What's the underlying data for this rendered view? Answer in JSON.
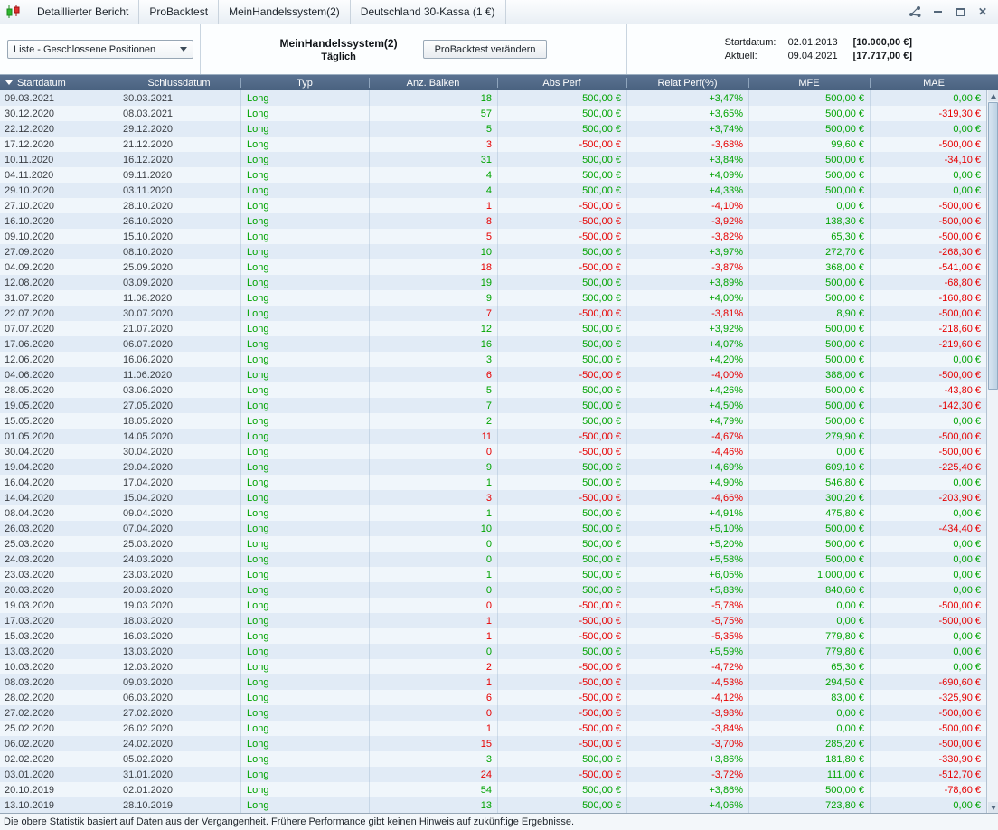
{
  "titlebar": {
    "tabs": [
      "Detaillierter Bericht",
      "ProBacktest",
      "MeinHandelssystem(2)",
      "Deutschland 30-Kassa (1 €)"
    ],
    "window_controls": {
      "minimize": "–",
      "maximize": "□",
      "close": "✕"
    }
  },
  "toolbar": {
    "list_dropdown_label": "Liste - Geschlossene Positionen",
    "system_name": "MeinHandelssystem(2)",
    "timeframe": "Täglich",
    "modify_button_label": "ProBacktest verändern",
    "start_label": "Startdatum:",
    "start_date": "02.01.2013",
    "start_value": "[10.000,00 €]",
    "current_label": "Aktuell:",
    "current_date": "09.04.2021",
    "current_value": "[17.717,00 €]"
  },
  "table": {
    "sort_indicator": "▼",
    "columns": [
      "Startdatum",
      "Schlussdatum",
      "Typ",
      "Anz. Balken",
      "Abs Perf",
      "Relat Perf(%)",
      "MFE",
      "MAE"
    ],
    "rows": [
      [
        "09.03.2021",
        "30.03.2021",
        "Long",
        "18",
        "500,00 €",
        "+3,47%",
        "500,00 €",
        "0,00 €"
      ],
      [
        "30.12.2020",
        "08.03.2021",
        "Long",
        "57",
        "500,00 €",
        "+3,65%",
        "500,00 €",
        "-319,30 €"
      ],
      [
        "22.12.2020",
        "29.12.2020",
        "Long",
        "5",
        "500,00 €",
        "+3,74%",
        "500,00 €",
        "0,00 €"
      ],
      [
        "17.12.2020",
        "21.12.2020",
        "Long",
        "3",
        "-500,00 €",
        "-3,68%",
        "99,60 €",
        "-500,00 €"
      ],
      [
        "10.11.2020",
        "16.12.2020",
        "Long",
        "31",
        "500,00 €",
        "+3,84%",
        "500,00 €",
        "-34,10 €"
      ],
      [
        "04.11.2020",
        "09.11.2020",
        "Long",
        "4",
        "500,00 €",
        "+4,09%",
        "500,00 €",
        "0,00 €"
      ],
      [
        "29.10.2020",
        "03.11.2020",
        "Long",
        "4",
        "500,00 €",
        "+4,33%",
        "500,00 €",
        "0,00 €"
      ],
      [
        "27.10.2020",
        "28.10.2020",
        "Long",
        "1",
        "-500,00 €",
        "-4,10%",
        "0,00 €",
        "-500,00 €"
      ],
      [
        "16.10.2020",
        "26.10.2020",
        "Long",
        "8",
        "-500,00 €",
        "-3,92%",
        "138,30 €",
        "-500,00 €"
      ],
      [
        "09.10.2020",
        "15.10.2020",
        "Long",
        "5",
        "-500,00 €",
        "-3,82%",
        "65,30 €",
        "-500,00 €"
      ],
      [
        "27.09.2020",
        "08.10.2020",
        "Long",
        "10",
        "500,00 €",
        "+3,97%",
        "272,70 €",
        "-268,30 €"
      ],
      [
        "04.09.2020",
        "25.09.2020",
        "Long",
        "18",
        "-500,00 €",
        "-3,87%",
        "368,00 €",
        "-541,00 €"
      ],
      [
        "12.08.2020",
        "03.09.2020",
        "Long",
        "19",
        "500,00 €",
        "+3,89%",
        "500,00 €",
        "-68,80 €"
      ],
      [
        "31.07.2020",
        "11.08.2020",
        "Long",
        "9",
        "500,00 €",
        "+4,00%",
        "500,00 €",
        "-160,80 €"
      ],
      [
        "22.07.2020",
        "30.07.2020",
        "Long",
        "7",
        "-500,00 €",
        "-3,81%",
        "8,90 €",
        "-500,00 €"
      ],
      [
        "07.07.2020",
        "21.07.2020",
        "Long",
        "12",
        "500,00 €",
        "+3,92%",
        "500,00 €",
        "-218,60 €"
      ],
      [
        "17.06.2020",
        "06.07.2020",
        "Long",
        "16",
        "500,00 €",
        "+4,07%",
        "500,00 €",
        "-219,60 €"
      ],
      [
        "12.06.2020",
        "16.06.2020",
        "Long",
        "3",
        "500,00 €",
        "+4,20%",
        "500,00 €",
        "0,00 €"
      ],
      [
        "04.06.2020",
        "11.06.2020",
        "Long",
        "6",
        "-500,00 €",
        "-4,00%",
        "388,00 €",
        "-500,00 €"
      ],
      [
        "28.05.2020",
        "03.06.2020",
        "Long",
        "5",
        "500,00 €",
        "+4,26%",
        "500,00 €",
        "-43,80 €"
      ],
      [
        "19.05.2020",
        "27.05.2020",
        "Long",
        "7",
        "500,00 €",
        "+4,50%",
        "500,00 €",
        "-142,30 €"
      ],
      [
        "15.05.2020",
        "18.05.2020",
        "Long",
        "2",
        "500,00 €",
        "+4,79%",
        "500,00 €",
        "0,00 €"
      ],
      [
        "01.05.2020",
        "14.05.2020",
        "Long",
        "11",
        "-500,00 €",
        "-4,67%",
        "279,90 €",
        "-500,00 €"
      ],
      [
        "30.04.2020",
        "30.04.2020",
        "Long",
        "0",
        "-500,00 €",
        "-4,46%",
        "0,00 €",
        "-500,00 €"
      ],
      [
        "19.04.2020",
        "29.04.2020",
        "Long",
        "9",
        "500,00 €",
        "+4,69%",
        "609,10 €",
        "-225,40 €"
      ],
      [
        "16.04.2020",
        "17.04.2020",
        "Long",
        "1",
        "500,00 €",
        "+4,90%",
        "546,80 €",
        "0,00 €"
      ],
      [
        "14.04.2020",
        "15.04.2020",
        "Long",
        "3",
        "-500,00 €",
        "-4,66%",
        "300,20 €",
        "-203,90 €"
      ],
      [
        "08.04.2020",
        "09.04.2020",
        "Long",
        "1",
        "500,00 €",
        "+4,91%",
        "475,80 €",
        "0,00 €"
      ],
      [
        "26.03.2020",
        "07.04.2020",
        "Long",
        "10",
        "500,00 €",
        "+5,10%",
        "500,00 €",
        "-434,40 €"
      ],
      [
        "25.03.2020",
        "25.03.2020",
        "Long",
        "0",
        "500,00 €",
        "+5,20%",
        "500,00 €",
        "0,00 €"
      ],
      [
        "24.03.2020",
        "24.03.2020",
        "Long",
        "0",
        "500,00 €",
        "+5,58%",
        "500,00 €",
        "0,00 €"
      ],
      [
        "23.03.2020",
        "23.03.2020",
        "Long",
        "1",
        "500,00 €",
        "+6,05%",
        "1.000,00 €",
        "0,00 €"
      ],
      [
        "20.03.2020",
        "20.03.2020",
        "Long",
        "0",
        "500,00 €",
        "+5,83%",
        "840,60 €",
        "0,00 €"
      ],
      [
        "19.03.2020",
        "19.03.2020",
        "Long",
        "0",
        "-500,00 €",
        "-5,78%",
        "0,00 €",
        "-500,00 €"
      ],
      [
        "17.03.2020",
        "18.03.2020",
        "Long",
        "1",
        "-500,00 €",
        "-5,75%",
        "0,00 €",
        "-500,00 €"
      ],
      [
        "15.03.2020",
        "16.03.2020",
        "Long",
        "1",
        "-500,00 €",
        "-5,35%",
        "779,80 €",
        "0,00 €"
      ],
      [
        "13.03.2020",
        "13.03.2020",
        "Long",
        "0",
        "500,00 €",
        "+5,59%",
        "779,80 €",
        "0,00 €"
      ],
      [
        "10.03.2020",
        "12.03.2020",
        "Long",
        "2",
        "-500,00 €",
        "-4,72%",
        "65,30 €",
        "0,00 €"
      ],
      [
        "08.03.2020",
        "09.03.2020",
        "Long",
        "1",
        "-500,00 €",
        "-4,53%",
        "294,50 €",
        "-690,60 €"
      ],
      [
        "28.02.2020",
        "06.03.2020",
        "Long",
        "6",
        "-500,00 €",
        "-4,12%",
        "83,00 €",
        "-325,90 €"
      ],
      [
        "27.02.2020",
        "27.02.2020",
        "Long",
        "0",
        "-500,00 €",
        "-3,98%",
        "0,00 €",
        "-500,00 €"
      ],
      [
        "25.02.2020",
        "26.02.2020",
        "Long",
        "1",
        "-500,00 €",
        "-3,84%",
        "0,00 €",
        "-500,00 €"
      ],
      [
        "06.02.2020",
        "24.02.2020",
        "Long",
        "15",
        "-500,00 €",
        "-3,70%",
        "285,20 €",
        "-500,00 €"
      ],
      [
        "02.02.2020",
        "05.02.2020",
        "Long",
        "3",
        "500,00 €",
        "+3,86%",
        "181,80 €",
        "-330,90 €"
      ],
      [
        "03.01.2020",
        "31.01.2020",
        "Long",
        "24",
        "-500,00 €",
        "-3,72%",
        "111,00 €",
        "-512,70 €"
      ],
      [
        "20.10.2019",
        "02.01.2020",
        "Long",
        "54",
        "500,00 €",
        "+3,86%",
        "500,00 €",
        "-78,60 €"
      ],
      [
        "13.10.2019",
        "28.10.2019",
        "Long",
        "13",
        "500,00 €",
        "+4,06%",
        "723,80 €",
        "0,00 €"
      ]
    ]
  },
  "footer": {
    "disclaimer": "Die obere Statistik basiert auf Daten aus der Vergangenheit. Frühere Performance gibt keinen Hinweis auf zukünftige Ergebnisse."
  },
  "colors": {
    "profit": "#00a300",
    "loss": "#e60000",
    "header_bg": "#49627f"
  }
}
